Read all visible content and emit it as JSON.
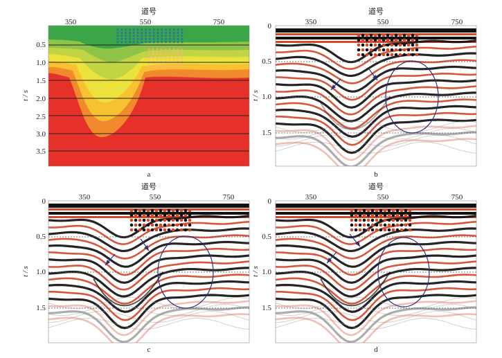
{
  "figure": {
    "panels": [
      {
        "id": "a",
        "caption": "a",
        "xlabel": "道号",
        "ylabel": "t / s",
        "xticks": [
          "350",
          "550",
          "750"
        ],
        "yticks": [
          "0.5",
          "1.0",
          "1.5",
          "2.0",
          "2.5",
          "3.0",
          "3.5"
        ],
        "type": "velocity-model"
      },
      {
        "id": "b",
        "caption": "b",
        "xlabel": "道号",
        "ylabel": "t / s",
        "xticks": [
          "350",
          "550",
          "750"
        ],
        "yticks": [
          "0",
          "0.5",
          "1.0",
          "1.5"
        ],
        "type": "seismic-section"
      },
      {
        "id": "c",
        "caption": "c",
        "xlabel": "道号",
        "ylabel": "t / s",
        "xticks": [
          "350",
          "550",
          "750"
        ],
        "yticks": [
          "0",
          "0.5",
          "1.0",
          "1.5"
        ],
        "type": "seismic-section"
      },
      {
        "id": "d",
        "caption": "d",
        "xlabel": "道号",
        "ylabel": "t / s",
        "xticks": [
          "350",
          "550",
          "750"
        ],
        "yticks": [
          "0",
          "0.5",
          "1.0",
          "1.5"
        ],
        "type": "seismic-section"
      }
    ],
    "colors": {
      "red": "#e5312a",
      "orange": "#f08a2c",
      "yellow": "#ebe23c",
      "lightgreen": "#8fc449",
      "green": "#3aa648",
      "wiggle-black": "#111111",
      "wiggle-red": "#d2492a",
      "ellipse": "#2a2f7a"
    }
  }
}
